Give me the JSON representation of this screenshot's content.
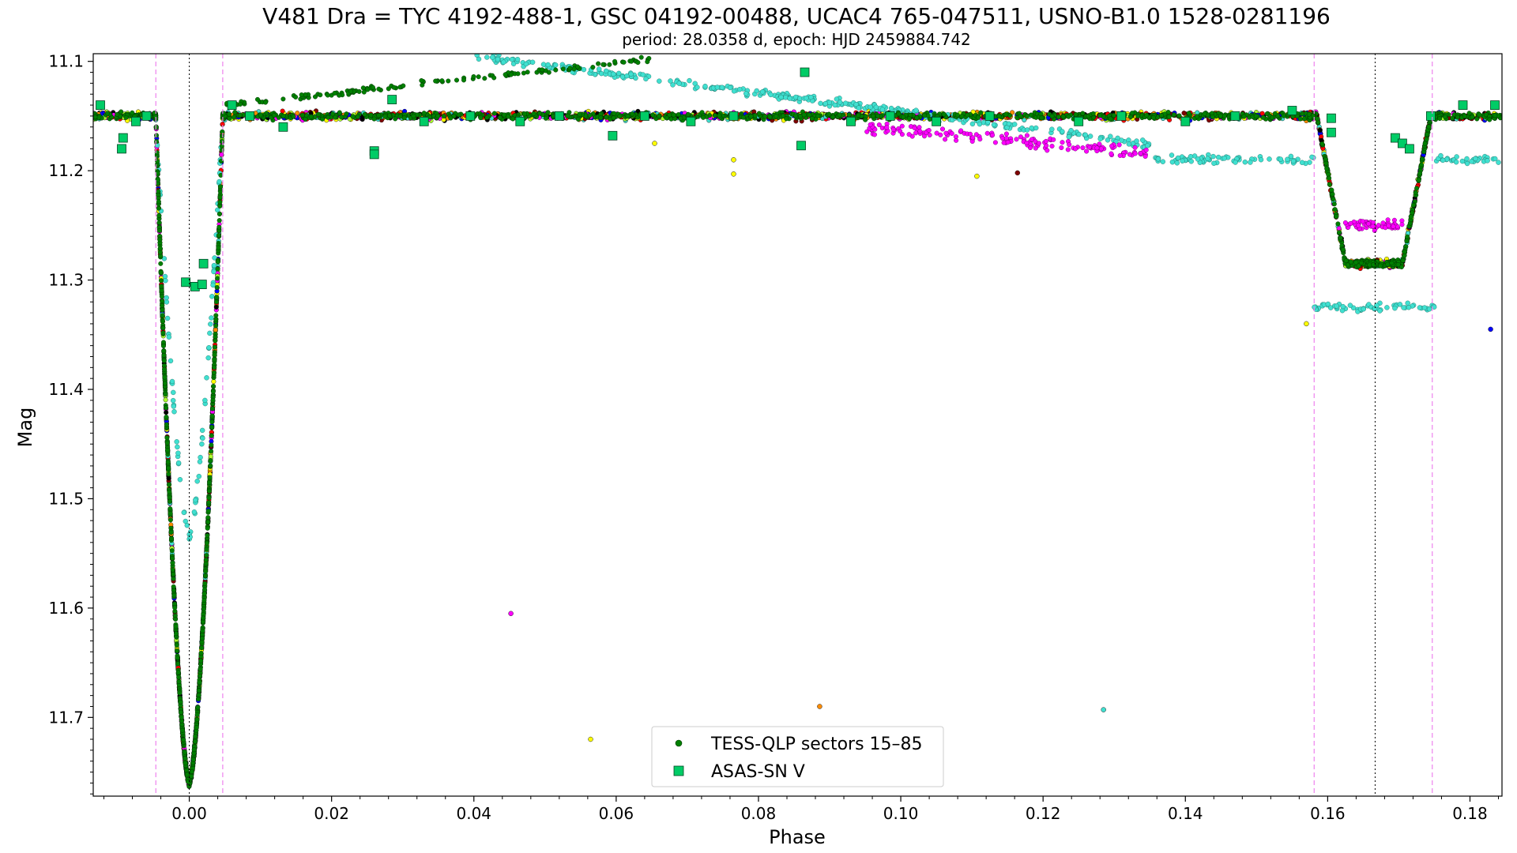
{
  "chart_data": {
    "type": "scatter",
    "title": "V481 Dra = TYC 4192-488-1, GSC 04192-00488, UCAC4 765-047511, USNO-B1.0 1528-0281196",
    "subtitle": "period: 28.0358 d, epoch: HJD 2459884.742",
    "xlabel": "Phase",
    "ylabel": "Mag",
    "xlim": [
      -0.0135,
      0.1845
    ],
    "ylim": [
      11.772,
      11.093
    ],
    "y_inverted": true,
    "grid": false,
    "legend_position": "bottom-center",
    "x_ticks": [
      "0.00",
      "0.02",
      "0.04",
      "0.06",
      "0.08",
      "0.10",
      "0.12",
      "0.14",
      "0.16",
      "0.18"
    ],
    "y_ticks": [
      "11.1",
      "11.2",
      "11.3",
      "11.4",
      "11.5",
      "11.6",
      "11.7"
    ],
    "vertical_lines": [
      {
        "x": 0.0,
        "style": "dotted",
        "color": "#000000"
      },
      {
        "x": 0.16667,
        "style": "dotted",
        "color": "#000000"
      },
      {
        "x": -0.0047,
        "style": "dashed",
        "color": "#ee82ee"
      },
      {
        "x": 0.0047,
        "style": "dashed",
        "color": "#ee82ee"
      },
      {
        "x": 0.1581,
        "style": "dashed",
        "color": "#ee82ee"
      },
      {
        "x": 0.1747,
        "style": "dashed",
        "color": "#ee82ee"
      }
    ],
    "series": [
      {
        "name": "TESS-QLP sectors 15–85",
        "marker": "circle",
        "color": "#008000",
        "curve": {
          "baseline": 11.15,
          "primary": {
            "center": 0.0,
            "half_width": 0.0047,
            "depth_mag": 11.76
          },
          "secondary": {
            "center": 0.1664,
            "ingress": [
              0.1585,
              0.1625
            ],
            "flat_bottom": [
              0.1625,
              0.1705
            ],
            "egress": [
              0.1705,
              0.1745
            ],
            "depth_mag": 11.285
          }
        },
        "other_sector_colors": [
          "#ff0000",
          "#0000ff",
          "#ffff00",
          "#ff8c00",
          "#ff00ff",
          "#800000",
          "#adff2f",
          "#40e0d0",
          "#000000"
        ]
      },
      {
        "name": "ASAS-SN V",
        "marker": "square",
        "color": "#00cc66",
        "values": [
          {
            "x": -0.0125,
            "y": 11.14
          },
          {
            "x": -0.0095,
            "y": 11.18
          },
          {
            "x": -0.0093,
            "y": 11.17
          },
          {
            "x": -0.0075,
            "y": 11.155
          },
          {
            "x": -0.006,
            "y": 11.15
          },
          {
            "x": -0.0005,
            "y": 11.302
          },
          {
            "x": 0.0008,
            "y": 11.306
          },
          {
            "x": 0.0018,
            "y": 11.304
          },
          {
            "x": 0.002,
            "y": 11.285
          },
          {
            "x": 0.006,
            "y": 11.14
          },
          {
            "x": 0.0085,
            "y": 11.15
          },
          {
            "x": 0.0132,
            "y": 11.16
          },
          {
            "x": 0.026,
            "y": 11.182
          },
          {
            "x": 0.026,
            "y": 11.185
          },
          {
            "x": 0.0285,
            "y": 11.135
          },
          {
            "x": 0.033,
            "y": 11.155
          },
          {
            "x": 0.0395,
            "y": 11.15
          },
          {
            "x": 0.0465,
            "y": 11.155
          },
          {
            "x": 0.052,
            "y": 11.15
          },
          {
            "x": 0.0595,
            "y": 11.168
          },
          {
            "x": 0.064,
            "y": 11.15
          },
          {
            "x": 0.0705,
            "y": 11.155
          },
          {
            "x": 0.0765,
            "y": 11.15
          },
          {
            "x": 0.086,
            "y": 11.177
          },
          {
            "x": 0.0865,
            "y": 11.11
          },
          {
            "x": 0.093,
            "y": 11.155
          },
          {
            "x": 0.0985,
            "y": 11.15
          },
          {
            "x": 0.105,
            "y": 11.155
          },
          {
            "x": 0.1125,
            "y": 11.15
          },
          {
            "x": 0.125,
            "y": 11.155
          },
          {
            "x": 0.131,
            "y": 11.15
          },
          {
            "x": 0.14,
            "y": 11.155
          },
          {
            "x": 0.147,
            "y": 11.15
          },
          {
            "x": 0.155,
            "y": 11.145
          },
          {
            "x": 0.1605,
            "y": 11.152
          },
          {
            "x": 0.1605,
            "y": 11.165
          },
          {
            "x": 0.1695,
            "y": 11.17
          },
          {
            "x": 0.1705,
            "y": 11.175
          },
          {
            "x": 0.1715,
            "y": 11.18
          },
          {
            "x": 0.1745,
            "y": 11.15
          },
          {
            "x": 0.179,
            "y": 11.14
          },
          {
            "x": 0.1835,
            "y": 11.14
          }
        ]
      }
    ],
    "stray_points": [
      {
        "x": 0.0452,
        "y": 11.605,
        "color": "#ff00ff"
      },
      {
        "x": 0.0564,
        "y": 11.72,
        "color": "#ffff00"
      },
      {
        "x": 0.0886,
        "y": 11.69,
        "color": "#ff8c00"
      },
      {
        "x": 0.1285,
        "y": 11.693,
        "color": "#40e0d0"
      },
      {
        "x": 0.157,
        "y": 11.34,
        "color": "#ffff00"
      },
      {
        "x": 0.1829,
        "y": 11.345,
        "color": "#0000ff"
      },
      {
        "x": 0.1164,
        "y": 11.202,
        "color": "#800000"
      },
      {
        "x": 0.0765,
        "y": 11.19,
        "color": "#ffff00"
      },
      {
        "x": 0.0765,
        "y": 11.203,
        "color": "#ffff00"
      },
      {
        "x": 0.1107,
        "y": 11.205,
        "color": "#ffff00"
      },
      {
        "x": 0.0654,
        "y": 11.175,
        "color": "#ffff00"
      }
    ]
  }
}
